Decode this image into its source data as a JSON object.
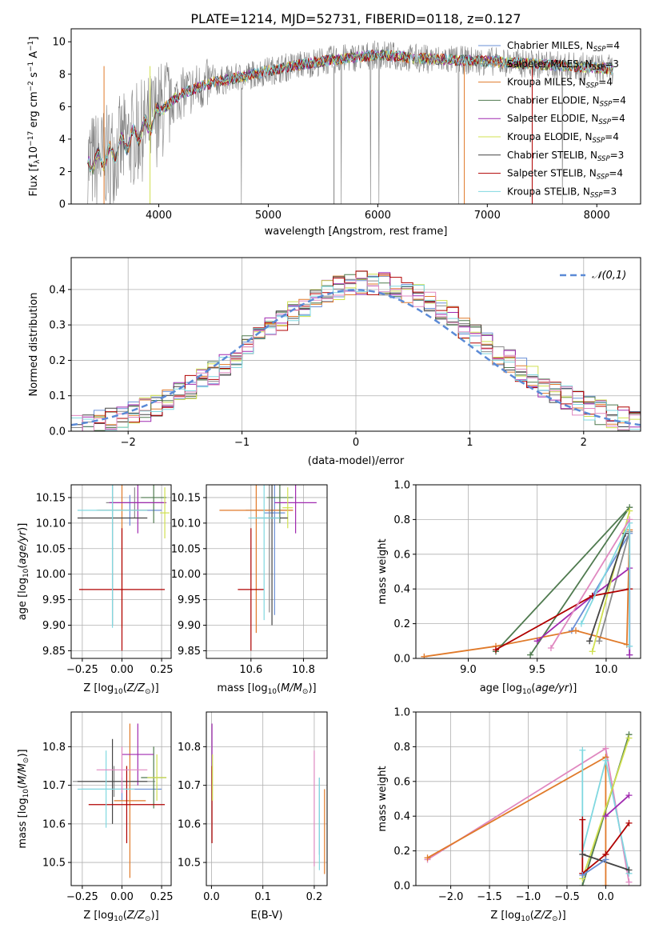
{
  "title": "PLATE=1214, MJD=52731, FIBERID=0118, z=0.127",
  "models": [
    {
      "name": "Chabrier MILES",
      "nssp": "4",
      "color": "#6a8fd6"
    },
    {
      "name": "Salpeter MILES",
      "nssp": "3",
      "color": "#8a8a8a"
    },
    {
      "name": "Kroupa MILES",
      "nssp": "4",
      "color": "#e07a2a"
    },
    {
      "name": "Chabrier ELODIE",
      "nssp": "4",
      "color": "#4f7a4f"
    },
    {
      "name": "Salpeter ELODIE",
      "nssp": "4",
      "color": "#a02ab0"
    },
    {
      "name": "Kroupa ELODIE",
      "nssp": "4",
      "color": "#d0e050"
    },
    {
      "name": "Chabrier STELIB",
      "nssp": "3",
      "color": "#444444"
    },
    {
      "name": "Salpeter STELIB",
      "nssp": "4",
      "color": "#b00000"
    },
    {
      "name": "Kroupa STELIB",
      "nssp": "3",
      "color": "#80d8e0"
    }
  ],
  "hist_extra_color": "#e088c0",
  "chart_data": [
    {
      "id": "spectrum",
      "type": "line",
      "title": "PLATE=1214, MJD=52731, FIBERID=0118, z=0.127",
      "xlabel": "wavelength [Angstrom, rest frame]",
      "ylabel": "Flux [f_λ 10^-17 erg cm^-2 s^-1 A^-1]",
      "xlim": [
        3200,
        8400
      ],
      "ylim": [
        0,
        10.8
      ],
      "xticks": [
        4000,
        5000,
        6000,
        7000,
        8000
      ],
      "yticks": [
        0,
        2,
        4,
        6,
        8,
        10
      ],
      "data_color": "#808080",
      "continuum": [
        [
          3350,
          2.5
        ],
        [
          3500,
          2.8
        ],
        [
          3700,
          3.8
        ],
        [
          3900,
          4.8
        ],
        [
          4000,
          5.6
        ],
        [
          4200,
          6.8
        ],
        [
          4500,
          7.5
        ],
        [
          4800,
          7.9
        ],
        [
          5000,
          8.2
        ],
        [
          5300,
          8.6
        ],
        [
          5600,
          8.9
        ],
        [
          6000,
          9.2
        ],
        [
          6300,
          9.0
        ],
        [
          6600,
          8.9
        ],
        [
          7000,
          8.8
        ],
        [
          7500,
          8.6
        ],
        [
          8000,
          8.4
        ],
        [
          8150,
          8.3
        ]
      ]
    },
    {
      "id": "residuals",
      "type": "histogram",
      "xlabel": "(data-model)/error",
      "ylabel": "Normed distribution",
      "xlim": [
        -2.5,
        2.5
      ],
      "ylim": [
        0,
        0.49
      ],
      "xticks": [
        -2,
        -1,
        0,
        1,
        2
      ],
      "yticks": [
        0.0,
        0.1,
        0.2,
        0.3,
        0.4
      ],
      "gaussian_label": "𝒩(0,1)",
      "gaussian_color": "#5b8ad6",
      "bin_width": 0.1
    },
    {
      "id": "age_vs_Z",
      "type": "scatter",
      "xlabel": "Z [log10(Z/Z⊙)]",
      "ylabel": "age  [log10(age/yr)]",
      "xlim": [
        -0.32,
        0.31
      ],
      "ylim": [
        9.835,
        10.175
      ],
      "xticks": [
        -0.25,
        0.0,
        0.25
      ],
      "xticklabels": [
        "−0.25",
        "0.00",
        "0.25"
      ],
      "yticks": [
        9.85,
        9.9,
        9.95,
        10.0,
        10.05,
        10.1,
        10.15
      ],
      "points": [
        {
          "m": 0,
          "x": 0.05,
          "xe": 0.2,
          "y": 10.125,
          "ye": 0.03
        },
        {
          "m": 1,
          "x": 0.08,
          "xe": 0.18,
          "y": 10.14,
          "ye": 0.03
        },
        {
          "m": 2,
          "x": 0.0,
          "xe": 0.16,
          "y": 10.125,
          "ye": 0.23
        },
        {
          "m": 3,
          "x": 0.2,
          "xe": 0.08,
          "y": 10.15,
          "ye": 0.05
        },
        {
          "m": 4,
          "x": 0.1,
          "xe": 0.18,
          "y": 10.14,
          "ye": 0.06
        },
        {
          "m": 5,
          "x": 0.27,
          "xe": 0.03,
          "y": 10.12,
          "ye": 0.05
        },
        {
          "m": 6,
          "x": -0.06,
          "xe": 0.22,
          "y": 10.11,
          "ye": 0.21
        },
        {
          "m": 7,
          "x": 0.0,
          "xe": 0.27,
          "y": 9.97,
          "ye": 0.12
        },
        {
          "m": 8,
          "x": -0.06,
          "xe": 0.22,
          "y": 10.125,
          "ye": 0.23
        }
      ]
    },
    {
      "id": "age_vs_mass",
      "type": "scatter",
      "xlabel": "mass [log10(M/M⊙)]",
      "ylabel": "",
      "xlim": [
        10.43,
        10.89
      ],
      "ylim": [
        9.835,
        10.175
      ],
      "xticks": [
        10.6,
        10.8
      ],
      "xticklabels": [
        "10.6",
        "10.8"
      ],
      "yticks": [
        9.85,
        9.9,
        9.95,
        10.0,
        10.05,
        10.1,
        10.15
      ],
      "points": [
        {
          "m": 0,
          "x": 10.69,
          "xe": 0.04,
          "y": 10.12,
          "ye": 0.2
        },
        {
          "m": 1,
          "x": 10.67,
          "xe": 0.09,
          "y": 10.125,
          "ye": 0.2
        },
        {
          "m": 2,
          "x": 10.62,
          "xe": 0.14,
          "y": 10.125,
          "ye": 0.24
        },
        {
          "m": 3,
          "x": 10.71,
          "xe": 0.05,
          "y": 10.15,
          "ye": 0.05
        },
        {
          "m": 4,
          "x": 10.77,
          "xe": 0.08,
          "y": 10.14,
          "ye": 0.06
        },
        {
          "m": 5,
          "x": 10.74,
          "xe": 0.02,
          "y": 10.13,
          "ye": 0.04
        },
        {
          "m": 6,
          "x": 10.68,
          "xe": 0.06,
          "y": 10.11,
          "ye": 0.21
        },
        {
          "m": 7,
          "x": 10.6,
          "xe": 0.05,
          "y": 9.97,
          "ye": 0.12
        },
        {
          "m": 8,
          "x": 10.65,
          "xe": 0.06,
          "y": 10.11,
          "ye": 0.2
        }
      ]
    },
    {
      "id": "weight_vs_age",
      "type": "line",
      "xlabel": "age  [log10(age/yr)]",
      "ylabel": "mass weight",
      "xlim": [
        8.62,
        10.25
      ],
      "ylim": [
        0,
        1
      ],
      "xticks": [
        9.0,
        9.5,
        10.0
      ],
      "xticklabels": [
        "9.0",
        "9.5",
        "10.0"
      ],
      "yticks": [
        0,
        0.2,
        0.4,
        0.6,
        0.8,
        1.0
      ],
      "series": [
        {
          "m": 0,
          "pts": [
            [
              9.75,
              0.16
            ],
            [
              10.17,
              0.72
            ],
            [
              10.17,
              0.02
            ]
          ]
        },
        {
          "m": 1,
          "pts": [
            [
              9.95,
              0.1
            ],
            [
              10.17,
              0.73
            ]
          ]
        },
        {
          "m": 2,
          "pts": [
            [
              8.68,
              0.01
            ],
            [
              9.2,
              0.07
            ],
            [
              9.78,
              0.16
            ],
            [
              10.15,
              0.08
            ],
            [
              10.17,
              0.74
            ]
          ]
        },
        {
          "m": 3,
          "pts": [
            [
              9.2,
              0.04
            ],
            [
              10.17,
              0.87
            ],
            [
              9.45,
              0.02
            ]
          ]
        },
        {
          "m": 4,
          "pts": [
            [
              9.5,
              0.1
            ],
            [
              9.9,
              0.36
            ],
            [
              10.17,
              0.52
            ],
            [
              10.17,
              0.02
            ]
          ]
        },
        {
          "m": 5,
          "pts": [
            [
              9.9,
              0.04
            ],
            [
              10.17,
              0.85
            ]
          ]
        },
        {
          "m": 6,
          "pts": [
            [
              9.88,
              0.1
            ],
            [
              10.14,
              0.72
            ]
          ]
        },
        {
          "m": 7,
          "pts": [
            [
              9.2,
              0.05
            ],
            [
              9.9,
              0.36
            ],
            [
              10.17,
              0.4
            ]
          ]
        },
        {
          "m": 8,
          "pts": [
            [
              9.82,
              0.2
            ],
            [
              10.17,
              0.78
            ],
            [
              10.17,
              0.07
            ]
          ]
        },
        {
          "m": 9,
          "pts": [
            [
              9.6,
              0.06
            ],
            [
              10.17,
              0.8
            ]
          ]
        }
      ]
    },
    {
      "id": "mass_vs_Z",
      "type": "scatter",
      "xlabel": "Z [log10(Z/Z⊙)]",
      "ylabel": "mass [log10(M/M⊙)]",
      "xlim": [
        -0.32,
        0.31
      ],
      "ylim": [
        10.44,
        10.89
      ],
      "xticks": [
        -0.25,
        0.0,
        0.25
      ],
      "xticklabels": [
        "−0.25",
        "0.00",
        "0.25"
      ],
      "yticks": [
        10.5,
        10.6,
        10.7,
        10.8
      ],
      "points": [
        {
          "m": 0,
          "x": 0.0,
          "xe": 0.25,
          "y": 10.69,
          "ye": 0.03
        },
        {
          "m": 1,
          "x": -0.05,
          "xe": 0.26,
          "y": 10.71,
          "ye": 0.04
        },
        {
          "m": 2,
          "x": 0.05,
          "xe": 0.1,
          "y": 10.66,
          "ye": 0.2
        },
        {
          "m": 3,
          "x": 0.2,
          "xe": 0.08,
          "y": 10.72,
          "ye": 0.08
        },
        {
          "m": 4,
          "x": 0.1,
          "xe": 0.1,
          "y": 10.78,
          "ye": 0.08
        },
        {
          "m": 5,
          "x": 0.22,
          "xe": 0.06,
          "y": 10.72,
          "ye": 0.06
        },
        {
          "m": 6,
          "x": -0.06,
          "xe": 0.22,
          "y": 10.71,
          "ye": 0.11
        },
        {
          "m": 7,
          "x": 0.03,
          "xe": 0.24,
          "y": 10.65,
          "ye": 0.1
        },
        {
          "m": 8,
          "x": -0.1,
          "xe": 0.18,
          "y": 10.69,
          "ye": 0.1
        },
        {
          "m": 9,
          "x": 0.0,
          "xe": 0.16,
          "y": 10.74,
          "ye": 0.06
        }
      ]
    },
    {
      "id": "mass_vs_EBV",
      "type": "scatter",
      "xlabel": "E(B-V)",
      "ylabel": "",
      "xlim": [
        -0.01,
        0.225
      ],
      "ylim": [
        10.44,
        10.89
      ],
      "xticks": [
        0.0,
        0.1,
        0.2
      ],
      "xticklabels": [
        "0.0",
        "0.1",
        "0.2"
      ],
      "yticks": [
        10.5,
        10.6,
        10.7,
        10.8
      ],
      "points": [
        {
          "m": 4,
          "x": 0.001,
          "xe": 0,
          "y": 10.78,
          "ye": 0.08
        },
        {
          "m": 7,
          "x": 0.001,
          "xe": 0,
          "y": 10.65,
          "ye": 0.1
        },
        {
          "m": 5,
          "x": 0.002,
          "xe": 0,
          "y": 10.72,
          "ye": 0.06
        },
        {
          "m": 9,
          "x": 0.2,
          "xe": 0,
          "y": 10.64,
          "ye": 0.15
        },
        {
          "m": 0,
          "x": 0.21,
          "xe": 0,
          "y": 10.62,
          "ye": 0.1
        },
        {
          "m": 8,
          "x": 0.21,
          "xe": 0,
          "y": 10.6,
          "ye": 0.12
        },
        {
          "m": 2,
          "x": 0.22,
          "xe": 0,
          "y": 10.58,
          "ye": 0.11
        }
      ]
    },
    {
      "id": "weight_vs_Z",
      "type": "line",
      "xlabel": "Z [log10(Z/Z⊙)]",
      "ylabel": "mass weight",
      "xlim": [
        -2.45,
        0.45
      ],
      "ylim": [
        0,
        1
      ],
      "xticks": [
        -2.0,
        -1.5,
        -1.0,
        -0.5,
        0.0
      ],
      "xticklabels": [
        "−2.0",
        "−1.5",
        "−1.0",
        "−0.5",
        "0.0"
      ],
      "yticks": [
        0,
        0.2,
        0.4,
        0.6,
        0.8,
        1.0
      ],
      "series": [
        {
          "m": 9,
          "pts": [
            [
              -2.3,
              0.15
            ],
            [
              0.0,
              0.79
            ],
            [
              0.3,
              0.02
            ]
          ]
        },
        {
          "m": 2,
          "pts": [
            [
              -2.3,
              0.16
            ],
            [
              0.0,
              0.74
            ],
            [
              0.0,
              0.0
            ]
          ]
        },
        {
          "m": 8,
          "pts": [
            [
              -0.3,
              0.78
            ],
            [
              -0.3,
              0.2
            ],
            [
              0.0,
              0.72
            ],
            [
              0.3,
              0.07
            ]
          ]
        },
        {
          "m": 3,
          "pts": [
            [
              -0.3,
              0.0
            ],
            [
              0.3,
              0.87
            ]
          ]
        },
        {
          "m": 5,
          "pts": [
            [
              -0.3,
              0.04
            ],
            [
              0.3,
              0.85
            ]
          ]
        },
        {
          "m": 4,
          "pts": [
            [
              0.0,
              0.4
            ],
            [
              0.3,
              0.52
            ]
          ]
        },
        {
          "m": 7,
          "pts": [
            [
              -0.3,
              0.38
            ],
            [
              -0.3,
              0.07
            ],
            [
              0.0,
              0.18
            ],
            [
              0.3,
              0.36
            ]
          ]
        },
        {
          "m": 6,
          "pts": [
            [
              -0.3,
              0.18
            ],
            [
              0.3,
              0.09
            ]
          ]
        },
        {
          "m": 0,
          "pts": [
            [
              -0.3,
              0.06
            ],
            [
              0.0,
              0.15
            ]
          ]
        }
      ]
    }
  ]
}
